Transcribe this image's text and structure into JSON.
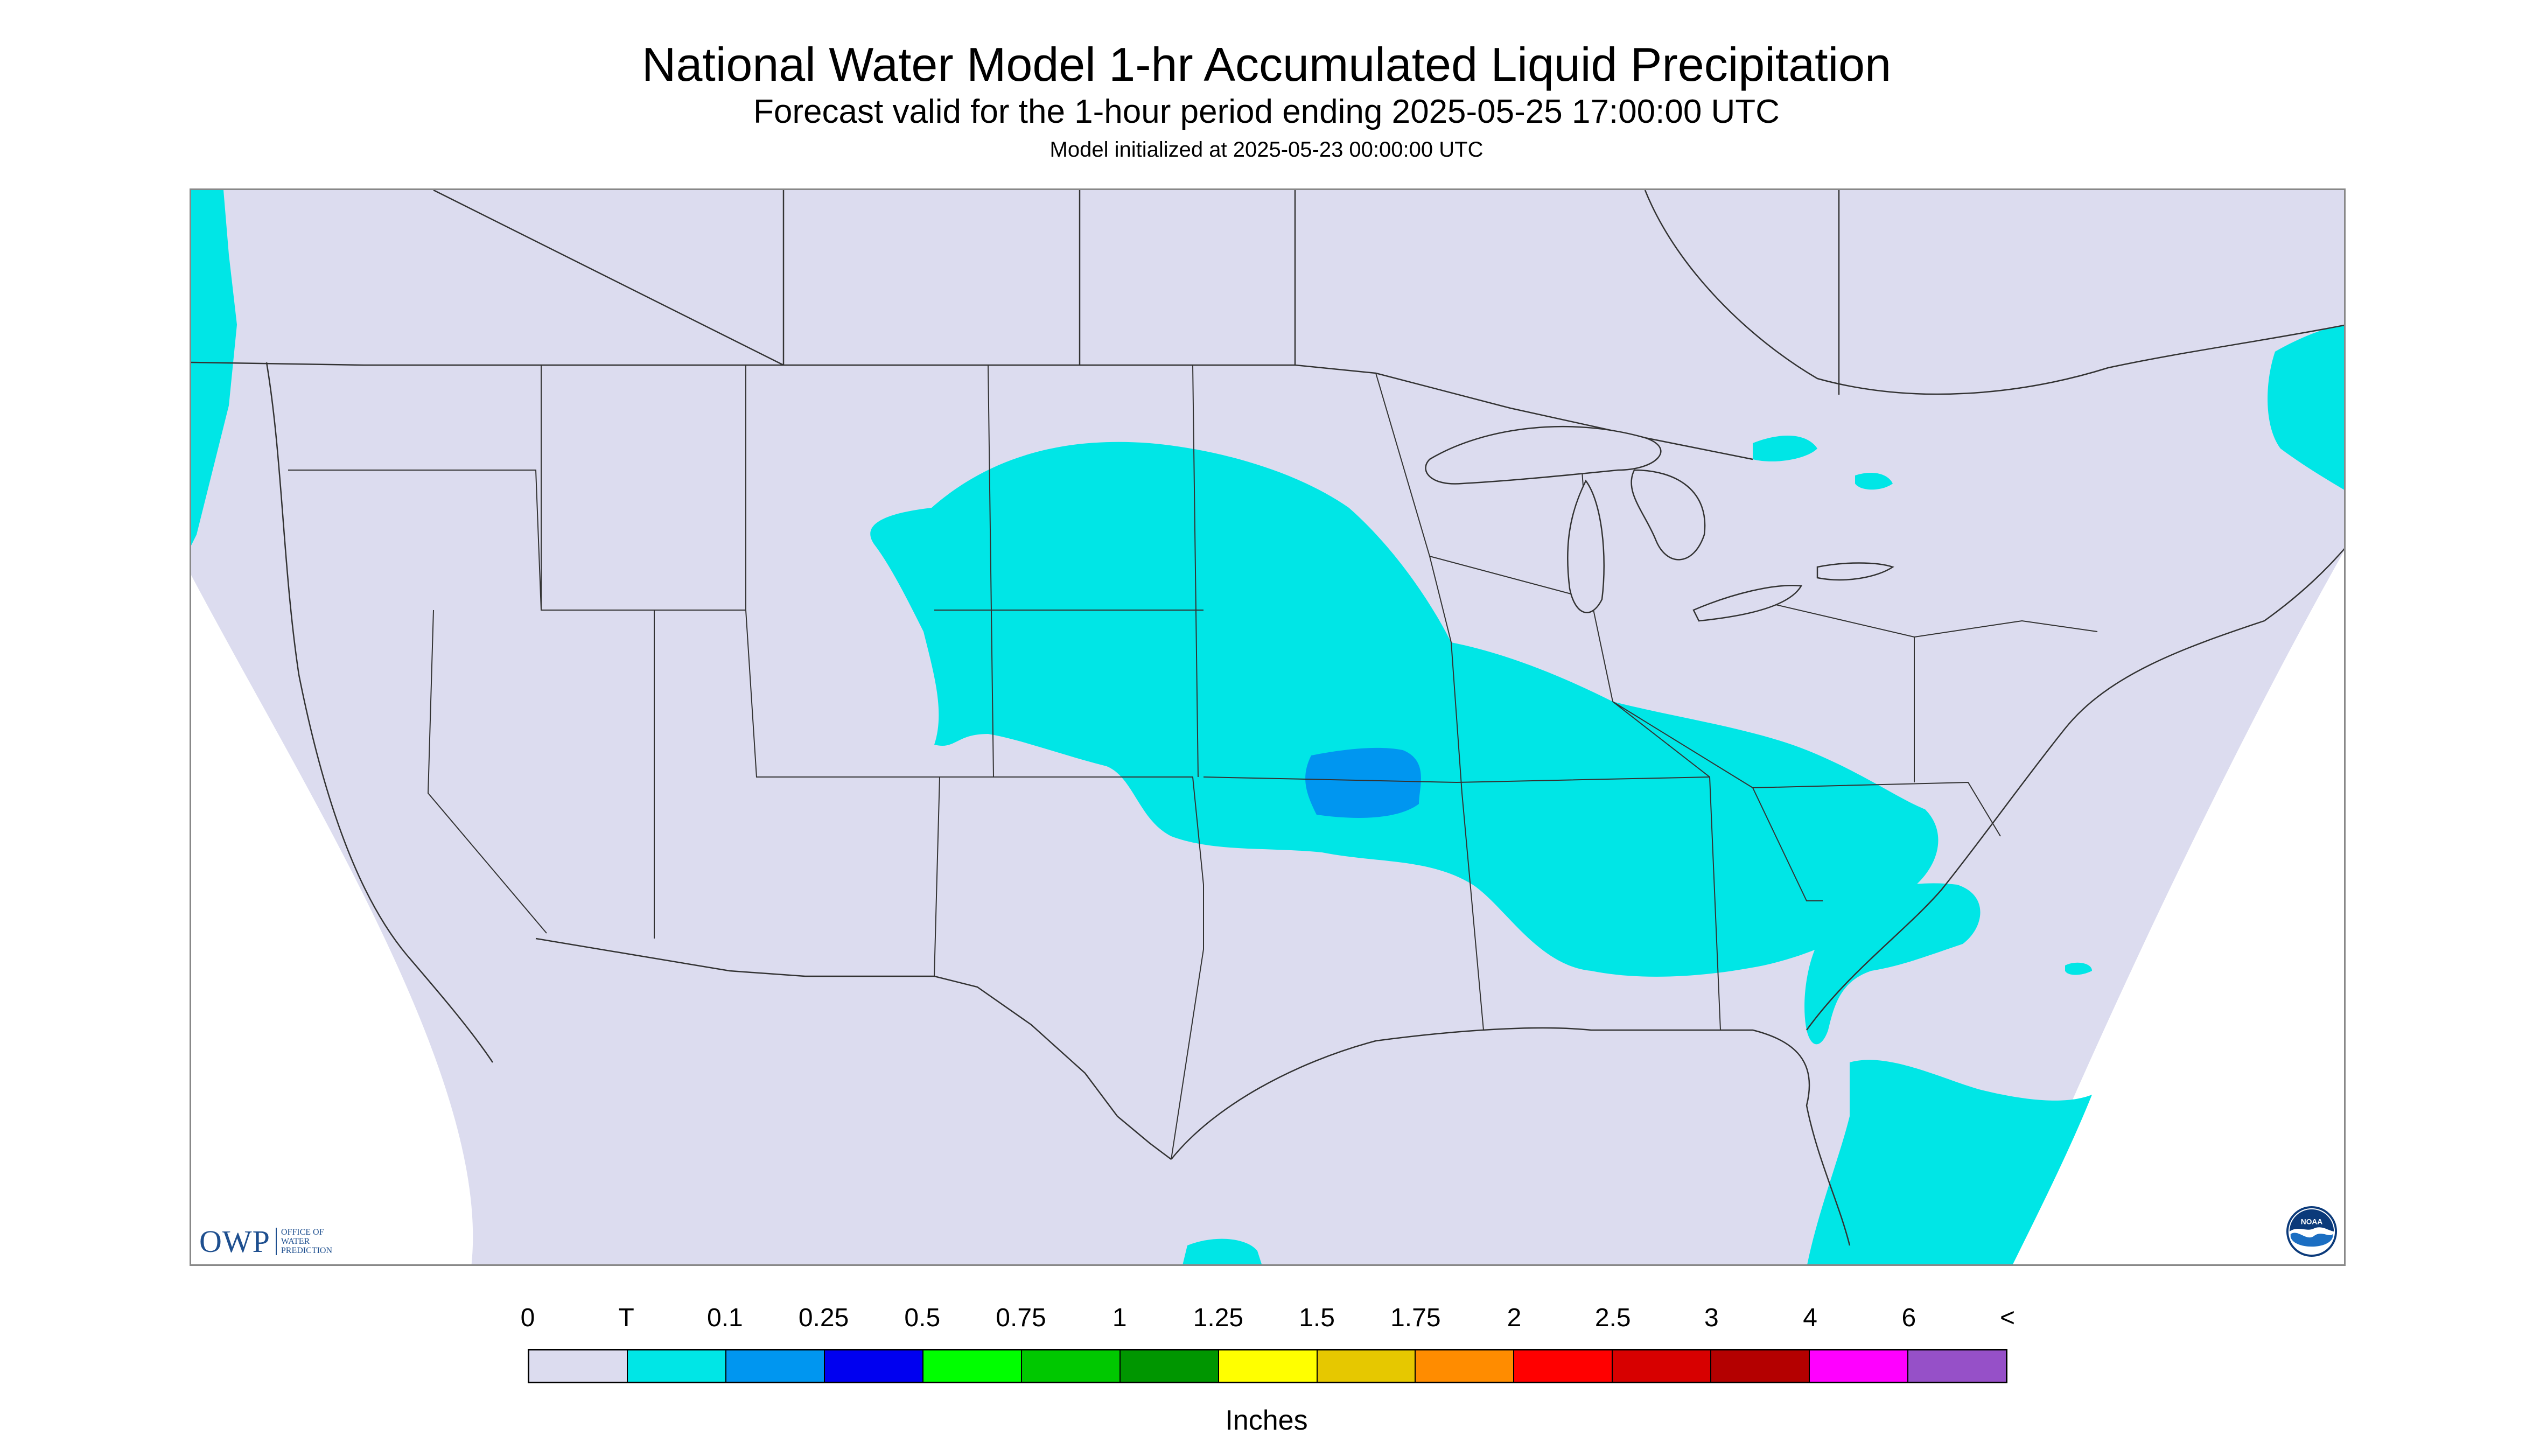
{
  "header": {
    "title": "National Water Model 1-hr Accumulated Liquid Precipitation",
    "subtitle": "Forecast valid for the 1-hour period ending 2025-05-25 17:00:00 UTC",
    "init": "Model initialized at 2025-05-23 00:00:00 UTC"
  },
  "colors": {
    "background_fill": "#dcdcef",
    "outside_fill": "#ffffff",
    "boundary": "#333333"
  },
  "logos": {
    "owp_mark": "OWP",
    "owp_line1": "OFFICE OF",
    "owp_line2": "WATER",
    "owp_line3": "PREDICTION",
    "noaa_text": "NOAA"
  },
  "legend": {
    "labels": [
      "0",
      "T",
      "0.1",
      "0.25",
      "0.5",
      "0.75",
      "1",
      "1.25",
      "1.5",
      "1.75",
      "2",
      "2.5",
      "3",
      "4",
      "6",
      "<"
    ],
    "colors": [
      "#dcdcef",
      "#00e6e6",
      "#0096f0",
      "#0000f0",
      "#00ff00",
      "#00c800",
      "#009600",
      "#ffff00",
      "#e6c800",
      "#ff8c00",
      "#ff0000",
      "#d70000",
      "#b40000",
      "#ff00ff",
      "#9650c8"
    ],
    "units": "Inches"
  }
}
